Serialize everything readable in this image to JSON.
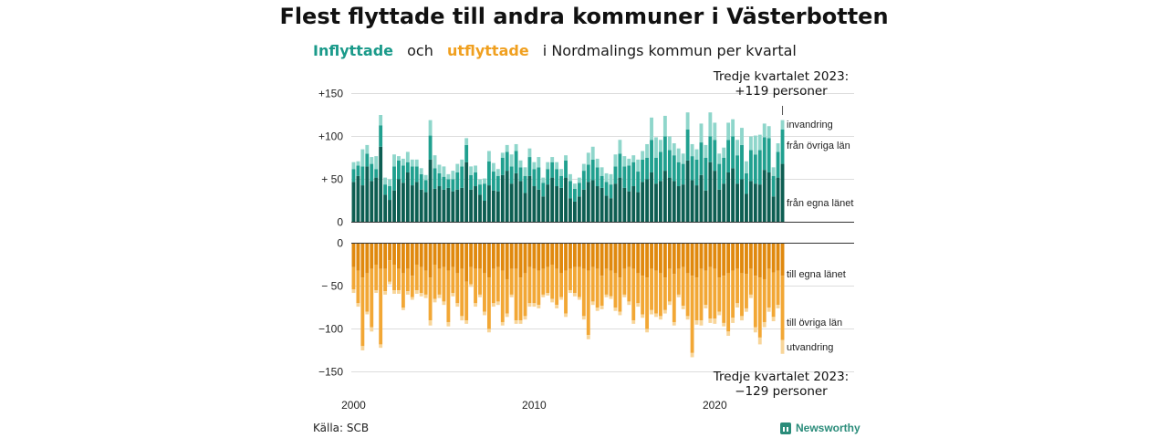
{
  "title": "Flest flyttade till andra kommuner i Västerbotten",
  "subtitle": {
    "in": "Inflyttade",
    "och": "och",
    "out": "utflyttade",
    "rest": "i Nordmalings  kommun  per  kvartal"
  },
  "annotations": {
    "top_line1": "Tredje kvartalet 2023:",
    "top_line2": "+119 personer",
    "bottom_line1": "Tredje kvartalet 2023:",
    "bottom_line2": "−129 personer"
  },
  "source": "Källa: SCB",
  "logo": "Newsworthy",
  "colors": {
    "in_egna": "#0d5e52",
    "in_ovriga": "#20a08f",
    "in_invandring": "#8fd6cb",
    "out_egna": "#e0890e",
    "out_ovriga": "#f2a735",
    "out_utvandring": "#f8d599",
    "gridline": "#dddddd",
    "axis": "#333333"
  },
  "chart_data": {
    "type": "bar",
    "stacked": true,
    "title": "Flest flyttade till andra kommuner i Västerbotten",
    "x_axis": {
      "start": "2000 Q1",
      "end": "2023 Q3",
      "ticks": [
        "2000",
        "2010",
        "2020"
      ]
    },
    "panels": [
      {
        "name": "Inflyttade",
        "ylim": [
          0,
          150
        ],
        "ticks": [
          "+150",
          "+100",
          "+ 50",
          "0"
        ],
        "tick_values": [
          150,
          100,
          50,
          0
        ],
        "series_labels": [
          "från egna länet",
          "från övriga län",
          "invandring"
        ],
        "series": [
          {
            "name": "från egna länet",
            "values": [
              47,
              54,
              43,
              65,
              48,
              52,
              88,
              32,
              26,
              37,
              50,
              46,
              58,
              43,
              47,
              38,
              35,
              73,
              39,
              42,
              38,
              40,
              36,
              38,
              40,
              70,
              38,
              42,
              32,
              25,
              43,
              37,
              36,
              55,
              60,
              45,
              57,
              48,
              34,
              54,
              42,
              38,
              30,
              44,
              52,
              42,
              40,
              52,
              28,
              24,
              30,
              38,
              47,
              49,
              42,
              40,
              31,
              28,
              45,
              52,
              40,
              36,
              42,
              35,
              47,
              50,
              58,
              45,
              48,
              60,
              52,
              48,
              42,
              44,
              72,
              49,
              43,
              55,
              37,
              70,
              60,
              38,
              45,
              58,
              63,
              45,
              50,
              33,
              48,
              45,
              44,
              61,
              58,
              30,
              52,
              68
            ]
          },
          {
            "name": "från övriga län",
            "values": [
              15,
              12,
              22,
              15,
              20,
              10,
              25,
              12,
              16,
              28,
              22,
              20,
              12,
              22,
              18,
              18,
              14,
              28,
              24,
              15,
              15,
              10,
              14,
              20,
              25,
              20,
              17,
              16,
              12,
              20,
              28,
              22,
              18,
              20,
              22,
              20,
              26,
              16,
              20,
              22,
              20,
              26,
              16,
              18,
              18,
              20,
              14,
              20,
              20,
              15,
              16,
              22,
              20,
              24,
              22,
              14,
              16,
              16,
              20,
              28,
              25,
              30,
              28,
              24,
              26,
              25,
              38,
              30,
              34,
              40,
              32,
              30,
              28,
              24,
              36,
              28,
              30,
              38,
              38,
              30,
              36,
              30,
              30,
              38,
              37,
              33,
              40,
              24,
              36,
              34,
              40,
              38,
              40,
              24,
              30,
              40
            ]
          },
          {
            "name": "invandring",
            "values": [
              8,
              5,
              20,
              10,
              8,
              15,
              12,
              8,
              8,
              14,
              5,
              8,
              12,
              8,
              8,
              7,
              6,
              18,
              15,
              10,
              12,
              6,
              10,
              10,
              8,
              8,
              10,
              8,
              6,
              6,
              12,
              10,
              8,
              6,
              8,
              14,
              8,
              8,
              10,
              10,
              8,
              12,
              6,
              8,
              6,
              8,
              8,
              6,
              8,
              6,
              6,
              8,
              14,
              15,
              10,
              10,
              10,
              12,
              14,
              16,
              12,
              8,
              8,
              14,
              10,
              16,
              26,
              24,
              14,
              24,
              16,
              14,
              16,
              12,
              20,
              14,
              12,
              22,
              15,
              28,
              20,
              12,
              12,
              20,
              20,
              18,
              20,
              14,
              16,
              22,
              18,
              16,
              14,
              10,
              10,
              11
            ]
          }
        ]
      },
      {
        "name": "Utflyttade",
        "ylim": [
          -150,
          0
        ],
        "ticks": [
          "0",
          "− 50",
          "−100",
          "−150"
        ],
        "tick_values": [
          0,
          -50,
          -100,
          -150
        ],
        "series_labels": [
          "till egna länet",
          "till övriga län",
          "utvandring"
        ],
        "series": [
          {
            "name": "till egna länet",
            "values": [
              -28,
              -32,
              -40,
              -35,
              -30,
              -25,
              -30,
              -30,
              -20,
              -25,
              -30,
              -35,
              -30,
              -38,
              -25,
              -28,
              -32,
              -40,
              -25,
              -30,
              -28,
              -32,
              -28,
              -35,
              -30,
              -45,
              -28,
              -30,
              -30,
              -35,
              -40,
              -30,
              -28,
              -32,
              -42,
              -30,
              -30,
              -40,
              -35,
              -28,
              -30,
              -32,
              -30,
              -28,
              -25,
              -30,
              -35,
              -32,
              -30,
              -28,
              -28,
              -30,
              -32,
              -28,
              -30,
              -38,
              -30,
              -32,
              -35,
              -40,
              -30,
              -28,
              -30,
              -35,
              -38,
              -40,
              -30,
              -32,
              -35,
              -40,
              -30,
              -36,
              -30,
              -28,
              -35,
              -38,
              -40,
              -30,
              -32,
              -28,
              -30,
              -40,
              -38,
              -35,
              -32,
              -30,
              -35,
              -36,
              -30,
              -38,
              -40,
              -42,
              -30,
              -34,
              -32,
              -38
            ]
          },
          {
            "name": "till övriga län",
            "values": [
              -26,
              -38,
              -80,
              -45,
              -68,
              -30,
              -88,
              -26,
              -25,
              -30,
              -25,
              -40,
              -26,
              -25,
              -30,
              -30,
              -28,
              -50,
              -40,
              -30,
              -40,
              -60,
              -30,
              -35,
              -55,
              -45,
              -20,
              -40,
              -30,
              -45,
              -60,
              -40,
              -40,
              -60,
              -40,
              -30,
              -60,
              -50,
              -50,
              -42,
              -40,
              -40,
              -30,
              -30,
              -40,
              -42,
              -28,
              -50,
              -25,
              -30,
              -35,
              -55,
              -75,
              -40,
              -45,
              -35,
              -30,
              -30,
              -40,
              -40,
              -30,
              -40,
              -60,
              -35,
              -45,
              -60,
              -48,
              -50,
              -50,
              -38,
              -38,
              -56,
              -30,
              -45,
              -50,
              -90,
              -50,
              -60,
              -40,
              -60,
              -58,
              -40,
              -55,
              -68,
              -55,
              -40,
              -50,
              -40,
              -30,
              -60,
              -70,
              -50,
              -45,
              -52,
              -40,
              -75
            ]
          },
          {
            "name": "utvandring",
            "values": [
              -4,
              -4,
              -5,
              -3,
              -5,
              -3,
              -4,
              -4,
              -3,
              -4,
              -4,
              -3,
              -4,
              -3,
              -4,
              -4,
              -4,
              -6,
              -4,
              -4,
              -4,
              -5,
              -4,
              -4,
              -5,
              -4,
              -3,
              -4,
              -3,
              -4,
              -4,
              -4,
              -4,
              -4,
              -4,
              -3,
              -4,
              -4,
              -4,
              -4,
              -4,
              -4,
              -3,
              -3,
              -4,
              -4,
              -3,
              -4,
              -3,
              -4,
              -3,
              -4,
              -5,
              -4,
              -4,
              -4,
              -3,
              -3,
              -4,
              -4,
              -3,
              -4,
              -4,
              -4,
              -4,
              -4,
              -5,
              -4,
              -4,
              -4,
              -4,
              -4,
              -3,
              -4,
              -4,
              -5,
              -5,
              -6,
              -4,
              -5,
              -6,
              -4,
              -4,
              -5,
              -6,
              -5,
              -5,
              -4,
              -4,
              -6,
              -8,
              -6,
              -5,
              -5,
              -4,
              -16
            ]
          }
        ]
      }
    ]
  }
}
